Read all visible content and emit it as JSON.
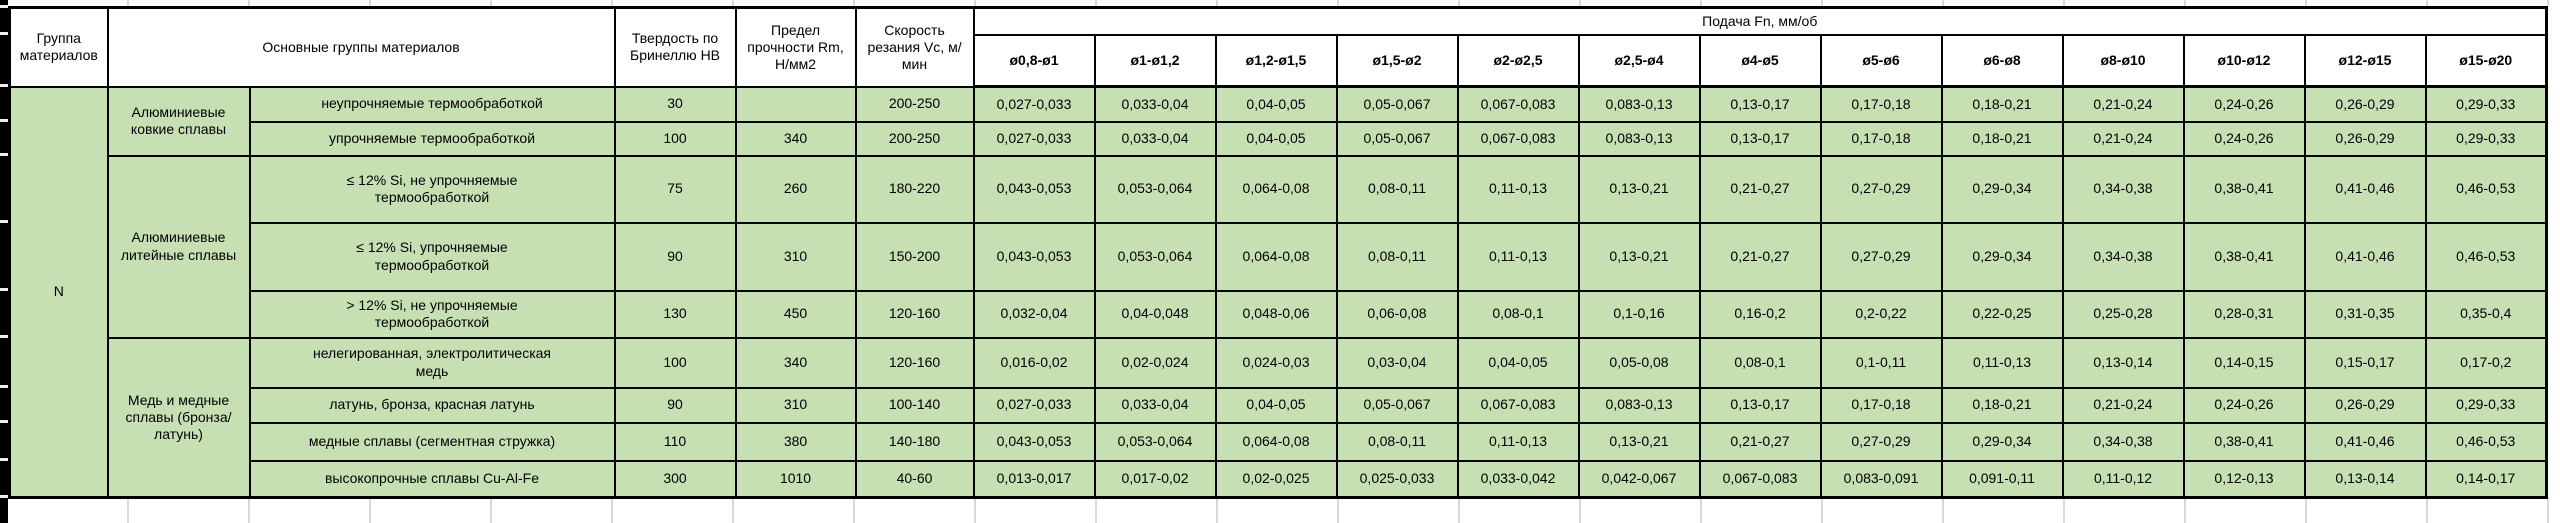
{
  "colors": {
    "cell_green": "#c6e0b4",
    "border": "#000000",
    "header_bg": "#ffffff"
  },
  "header": {
    "group_col": "Группа материалов",
    "main_col": "Основные группы материалов",
    "hardness_col": "Твердость по Бринеллю HB",
    "strength_col": "Предел прочности Rm, Н/мм2",
    "speed_col": "Скорость резания Vc, м/мин",
    "feed_col": "Подача Fn, мм/об",
    "feed_columns": [
      "ø0,8-ø1",
      "ø1-ø1,2",
      "ø1,2-ø1,5",
      "ø1,5-ø2",
      "ø2-ø2,5",
      "ø2,5-ø4",
      "ø4-ø5",
      "ø5-ø6",
      "ø6-ø8",
      "ø8-ø10",
      "ø10-ø12",
      "ø12-ø15",
      "ø15-ø20"
    ]
  },
  "material_group": "N",
  "groups": [
    {
      "name": "Алюминиевые ковкие сплавы",
      "rows": [
        {
          "label": "неупрочняемые термообработкой",
          "hb": "30",
          "rm": "",
          "vc": "200-250",
          "feeds": [
            "0,027-0,033",
            "0,033-0,04",
            "0,04-0,05",
            "0,05-0,067",
            "0,067-0,083",
            "0,083-0,13",
            "0,13-0,17",
            "0,17-0,18",
            "0,18-0,21",
            "0,21-0,24",
            "0,24-0,26",
            "0,26-0,29",
            "0,29-0,33"
          ]
        },
        {
          "label": "упрочняемые термообработкой",
          "hb": "100",
          "rm": "340",
          "vc": "200-250",
          "feeds": [
            "0,027-0,033",
            "0,033-0,04",
            "0,04-0,05",
            "0,05-0,067",
            "0,067-0,083",
            "0,083-0,13",
            "0,13-0,17",
            "0,17-0,18",
            "0,18-0,21",
            "0,21-0,24",
            "0,24-0,26",
            "0,26-0,29",
            "0,29-0,33"
          ]
        }
      ]
    },
    {
      "name": "Алюминиевые литейные сплавы",
      "rows": [
        {
          "label": "≤ 12% Si, не упрочняемые термообработкой",
          "hb": "75",
          "rm": "260",
          "vc": "180-220",
          "feeds": [
            "0,043-0,053",
            "0,053-0,064",
            "0,064-0,08",
            "0,08-0,11",
            "0,11-0,13",
            "0,13-0,21",
            "0,21-0,27",
            "0,27-0,29",
            "0,29-0,34",
            "0,34-0,38",
            "0,38-0,41",
            "0,41-0,46",
            "0,46-0,53"
          ]
        },
        {
          "label": "≤ 12% Si, упрочняемые термообработкой",
          "hb": "90",
          "rm": "310",
          "vc": "150-200",
          "feeds": [
            "0,043-0,053",
            "0,053-0,064",
            "0,064-0,08",
            "0,08-0,11",
            "0,11-0,13",
            "0,13-0,21",
            "0,21-0,27",
            "0,27-0,29",
            "0,29-0,34",
            "0,34-0,38",
            "0,38-0,41",
            "0,41-0,46",
            "0,46-0,53"
          ]
        },
        {
          "label": "> 12% Si, не упрочняемые термообработкой",
          "hb": "130",
          "rm": "450",
          "vc": "120-160",
          "feeds": [
            "0,032-0,04",
            "0,04-0,048",
            "0,048-0,06",
            "0,06-0,08",
            "0,08-0,1",
            "0,1-0,16",
            "0,16-0,2",
            "0,2-0,22",
            "0,22-0,25",
            "0,25-0,28",
            "0,28-0,31",
            "0,31-0,35",
            "0,35-0,4"
          ]
        }
      ]
    },
    {
      "name": "Медь и медные сплавы (бронза/латунь)",
      "rows": [
        {
          "label": "нелегированная, электролитическая медь",
          "hb": "100",
          "rm": "340",
          "vc": "120-160",
          "feeds": [
            "0,016-0,02",
            "0,02-0,024",
            "0,024-0,03",
            "0,03-0,04",
            "0,04-0,05",
            "0,05-0,08",
            "0,08-0,1",
            "0,1-0,11",
            "0,11-0,13",
            "0,13-0,14",
            "0,14-0,15",
            "0,15-0,17",
            "0,17-0,2"
          ]
        },
        {
          "label": "латунь, бронза, красная латунь",
          "hb": "90",
          "rm": "310",
          "vc": "100-140",
          "feeds": [
            "0,027-0,033",
            "0,033-0,04",
            "0,04-0,05",
            "0,05-0,067",
            "0,067-0,083",
            "0,083-0,13",
            "0,13-0,17",
            "0,17-0,18",
            "0,18-0,21",
            "0,21-0,24",
            "0,24-0,26",
            "0,26-0,29",
            "0,29-0,33"
          ]
        },
        {
          "label": "медные сплавы (сегментная стружка)",
          "hb": "110",
          "rm": "380",
          "vc": "140-180",
          "feeds": [
            "0,043-0,053",
            "0,053-0,064",
            "0,064-0,08",
            "0,08-0,11",
            "0,11-0,13",
            "0,13-0,21",
            "0,21-0,27",
            "0,27-0,29",
            "0,29-0,34",
            "0,34-0,38",
            "0,38-0,41",
            "0,41-0,46",
            "0,46-0,53"
          ]
        },
        {
          "label": "высокопрочные сплавы Cu-Al-Fe",
          "hb": "300",
          "rm": "1010",
          "vc": "40-60",
          "feeds": [
            "0,013-0,017",
            "0,017-0,02",
            "0,02-0,025",
            "0,025-0,033",
            "0,033-0,042",
            "0,042-0,067",
            "0,067-0,083",
            "0,083-0,091",
            "0,091-0,11",
            "0,11-0,12",
            "0,12-0,13",
            "0,13-0,14",
            "0,14-0,17"
          ]
        }
      ]
    }
  ]
}
